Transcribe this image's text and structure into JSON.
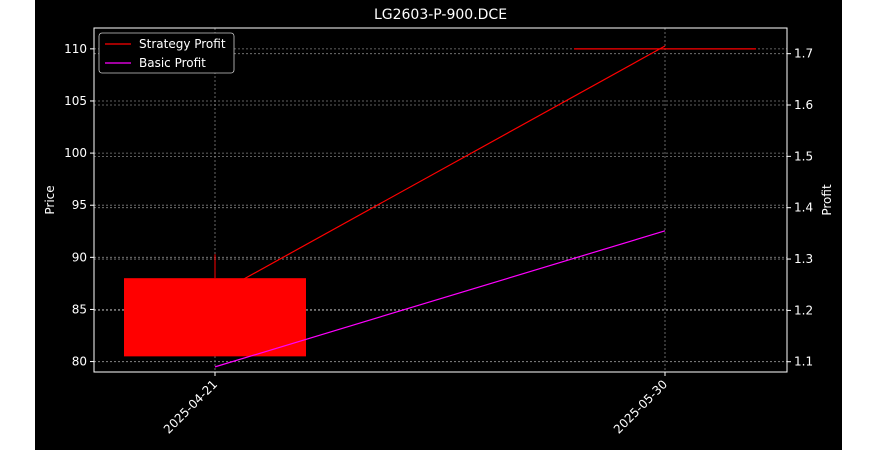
{
  "chart_data": {
    "type": "candlestick+line",
    "title": "LG2603-P-900.DCE",
    "ylabel_left": "Price",
    "ylabel_right": "Profit",
    "x_ticks": [
      "2025-04-21",
      "2025-05-30"
    ],
    "y_left_ticks": [
      80,
      85,
      90,
      95,
      100,
      105,
      110
    ],
    "y_right_ticks": [
      1.1,
      1.2,
      1.3,
      1.4,
      1.5,
      1.6,
      1.7
    ],
    "y_left_range": [
      79,
      112
    ],
    "y_right_range": [
      1.08,
      1.75
    ],
    "grid": true,
    "legend_position": "upper-left",
    "candles": [
      {
        "date": "2025-04-21",
        "open": 88.0,
        "high": 90.3,
        "low": 80.5,
        "close": 80.5,
        "color": "#ff0000"
      },
      {
        "date": "2025-05-30",
        "open": 110.0,
        "high": 110.0,
        "low": 110.0,
        "close": 110.0,
        "color": "#ff0000"
      }
    ],
    "series": [
      {
        "name": "Strategy Profit",
        "color": "#ff0000",
        "axis": "right",
        "x": [
          "2025-04-21",
          "2025-05-30"
        ],
        "values": [
          1.23,
          1.715
        ]
      },
      {
        "name": "Basic Profit",
        "color": "#ff00ff",
        "axis": "right",
        "x": [
          "2025-04-21",
          "2025-05-30"
        ],
        "values": [
          1.09,
          1.355
        ]
      }
    ]
  },
  "colors": {
    "background": "#000000",
    "axes": "#ffffff",
    "grid": "#808080"
  }
}
